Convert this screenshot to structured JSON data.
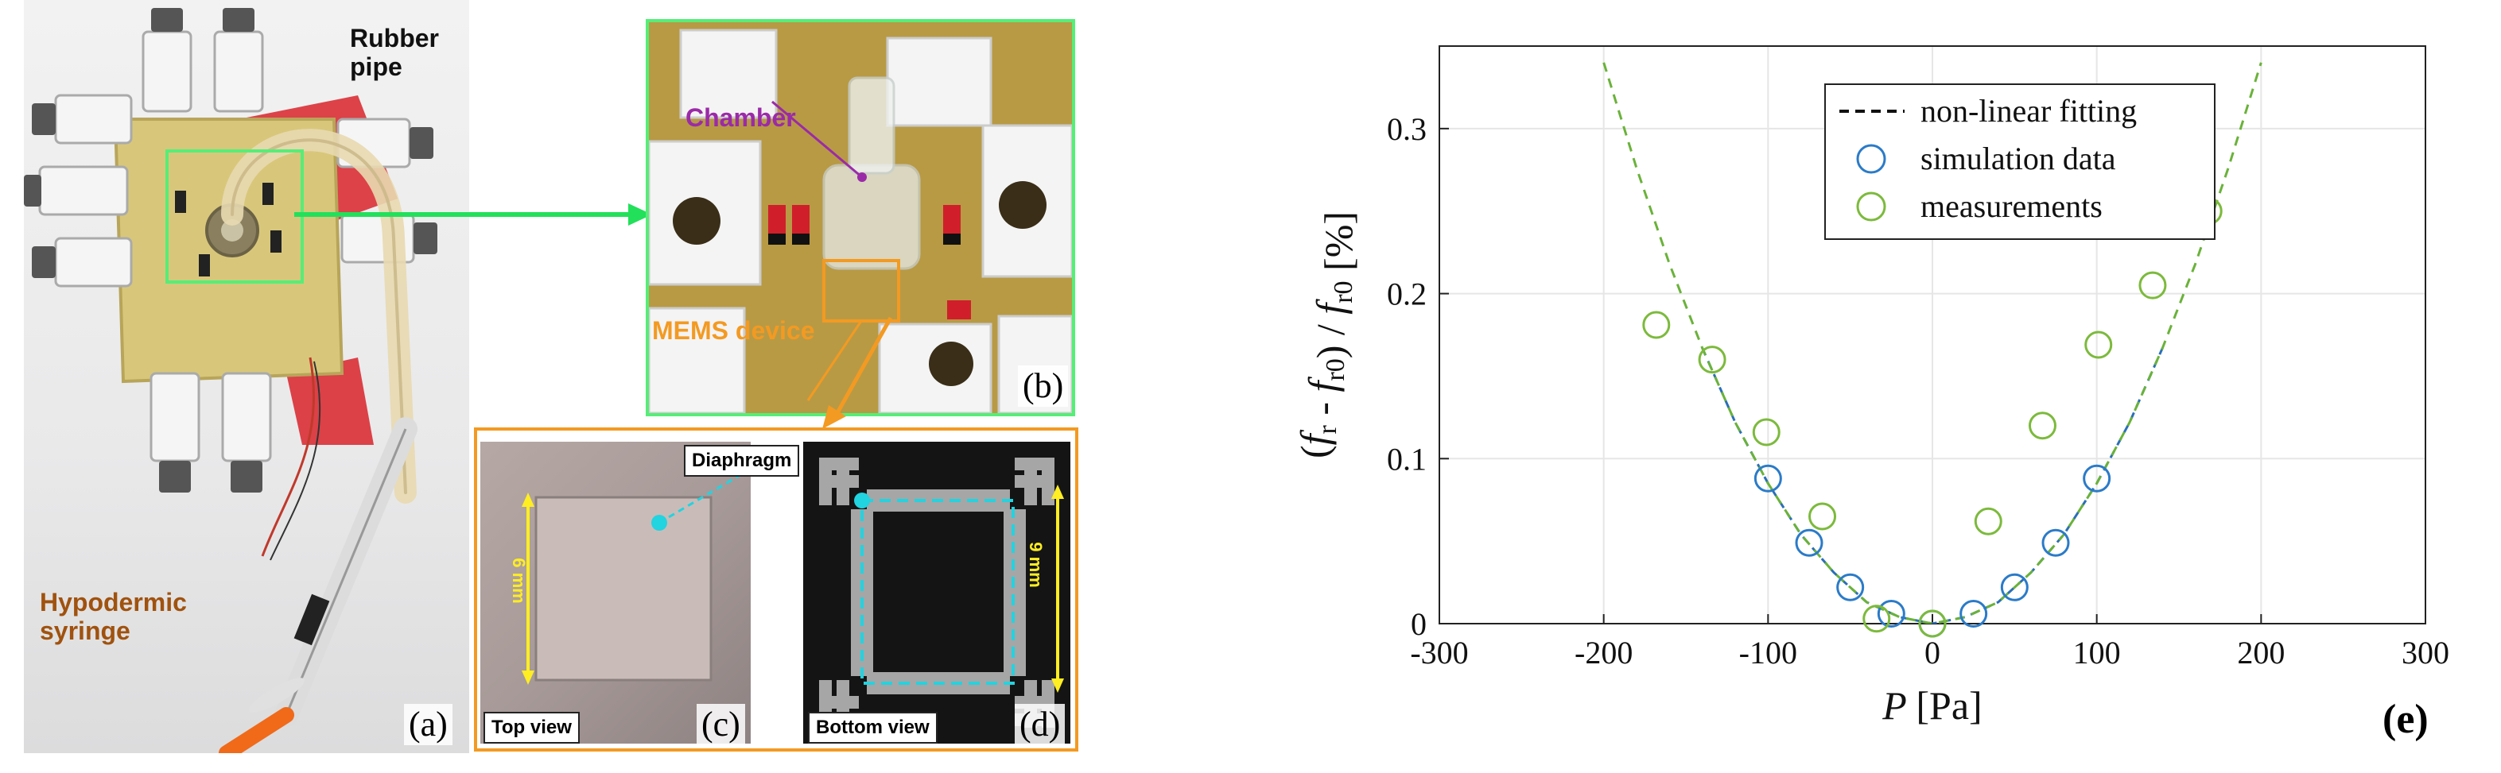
{
  "panels": {
    "a": {
      "letter": "(a)",
      "labels": {
        "rubber_pipe": "Rubber pipe",
        "syringe": "Hypodermic syringe"
      },
      "colors": {
        "rubber_pipe": "#111111",
        "syringe": "#a0520e",
        "roi_box": "#55ee77"
      }
    },
    "b": {
      "letter": "(b)",
      "labels": {
        "chamber": "Chamber",
        "mems_device": "MEMS device"
      },
      "colors": {
        "chamber": "#9b2aa8",
        "mems_device": "#f39a22",
        "frame": "#55ee77"
      }
    },
    "c": {
      "letter": "(c)",
      "view_tag": "Top view",
      "dimension": "6 mm",
      "colors": {
        "dimension": "#ffee22",
        "marker": "#22d3e0"
      }
    },
    "d": {
      "letter": "(d)",
      "view_tag": "Bottom view",
      "dimension": "9 mm",
      "colors": {
        "dimension": "#ffee22",
        "marker": "#22d3e0"
      }
    },
    "cd": {
      "diaphragm_label": "Diaphragm",
      "frame_color": "#f39a22"
    },
    "e": {
      "letter": "(e)"
    }
  },
  "chart_data": {
    "type": "scatter",
    "xlabel_var": "P",
    "xlabel_unit": "[Pa]",
    "ylabel": "(f_r - f_r0) / f_r0 [%]",
    "xlim": [
      -300,
      300
    ],
    "ylim": [
      0,
      0.35
    ],
    "xticks": [
      -300,
      -200,
      -100,
      0,
      100,
      200,
      300
    ],
    "xtick_labels": [
      "-300",
      "-200",
      "-100",
      "0",
      "100",
      "200",
      "300"
    ],
    "yticks": [
      0,
      0.1,
      0.2,
      0.3
    ],
    "ytick_labels": [
      "0",
      "0.1",
      "0.2",
      "0.3"
    ],
    "grid": true,
    "legend_placement": "top-center",
    "series": [
      {
        "name": "non-linear fitting",
        "kind": "dashed-line",
        "color": "#6ab23a",
        "overlay_color": "#2b6fb8",
        "x": [
          -200,
          -180,
          -160,
          -140,
          -120,
          -100,
          -80,
          -60,
          -40,
          -20,
          0,
          20,
          40,
          60,
          80,
          100,
          120,
          140,
          160,
          180,
          200
        ],
        "y": [
          0.34,
          0.276,
          0.218,
          0.167,
          0.122,
          0.085,
          0.054,
          0.031,
          0.013,
          0.004,
          0.0,
          0.004,
          0.013,
          0.031,
          0.054,
          0.085,
          0.122,
          0.167,
          0.218,
          0.276,
          0.34
        ]
      },
      {
        "name": "simulation data",
        "kind": "circle",
        "color": "#2b7bc8",
        "x": [
          -100,
          -75,
          -50,
          -25,
          0,
          25,
          50,
          75,
          100
        ],
        "y": [
          0.088,
          0.049,
          0.022,
          0.006,
          0.0,
          0.006,
          0.022,
          0.049,
          0.088
        ]
      },
      {
        "name": "measurements",
        "kind": "circle",
        "color": "#7cba3c",
        "x": [
          -168,
          -134,
          -101,
          -67,
          -34,
          0,
          34,
          67,
          101,
          134,
          168
        ],
        "y": [
          0.181,
          0.16,
          0.116,
          0.065,
          0.003,
          0.0,
          0.062,
          0.12,
          0.169,
          0.205,
          0.25
        ]
      }
    ]
  }
}
